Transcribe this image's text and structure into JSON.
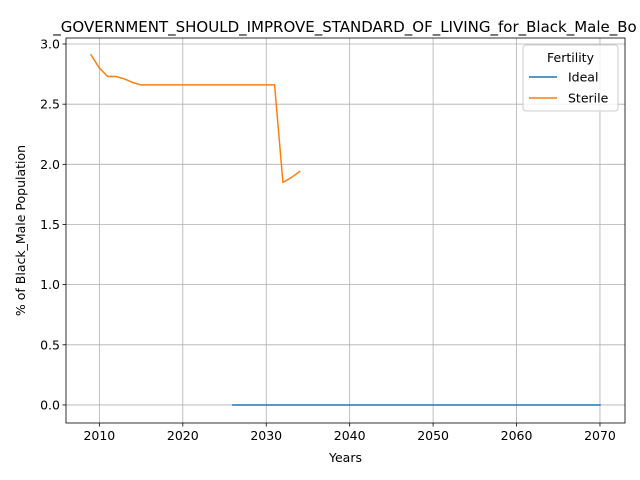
{
  "chart_data": {
    "type": "line",
    "title": "_GOVERNMENT_SHOULD_IMPROVE_STANDARD_OF_LIVING_for_Black_Male_Bo",
    "xlabel": "Years",
    "ylabel": "% of Black_Male Population",
    "xlim": [
      2006,
      2073
    ],
    "ylim": [
      -0.15,
      3.05
    ],
    "xticks": [
      2010,
      2020,
      2030,
      2040,
      2050,
      2060,
      2070
    ],
    "yticks": [
      0.0,
      0.5,
      1.0,
      1.5,
      2.0,
      2.5,
      3.0
    ],
    "xtick_labels": [
      "2010",
      "2020",
      "2030",
      "2040",
      "2050",
      "2060",
      "2070"
    ],
    "ytick_labels": [
      "0.0",
      "0.5",
      "1.0",
      "1.5",
      "2.0",
      "2.5",
      "3.0"
    ],
    "grid": true,
    "legend": {
      "title": "Fertility",
      "placement": "top-right"
    },
    "series": [
      {
        "name": "Ideal",
        "color": "#1f77b4",
        "x": [
          2026,
          2030,
          2035,
          2040,
          2045,
          2050,
          2055,
          2060,
          2065,
          2070
        ],
        "y": [
          0,
          0,
          0,
          0,
          0,
          0,
          0,
          0,
          0,
          0
        ]
      },
      {
        "name": "Sterile",
        "color": "#ff7f0e",
        "x": [
          2009,
          2010,
          2011,
          2012,
          2013,
          2014,
          2015,
          2016,
          2017,
          2018,
          2019,
          2020,
          2021,
          2022,
          2023,
          2024,
          2025,
          2026,
          2027,
          2028,
          2029,
          2030,
          2031,
          2032,
          2033,
          2034
        ],
        "y": [
          2.91,
          2.8,
          2.73,
          2.73,
          2.71,
          2.68,
          2.66,
          2.66,
          2.66,
          2.66,
          2.66,
          2.66,
          2.66,
          2.66,
          2.66,
          2.66,
          2.66,
          2.66,
          2.66,
          2.66,
          2.66,
          2.66,
          2.66,
          1.85,
          1.89,
          1.94
        ]
      }
    ]
  }
}
